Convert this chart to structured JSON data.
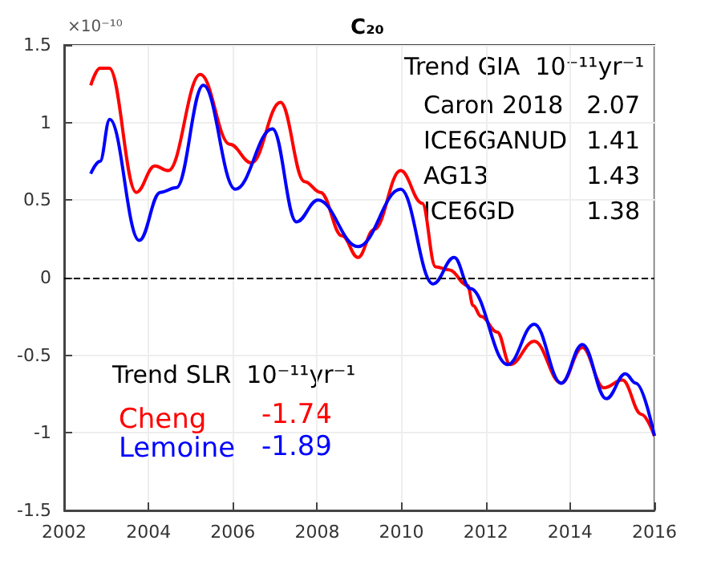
{
  "chart_data": {
    "type": "line",
    "title": "C₂₀",
    "annotations": [
      "×10⁻¹⁰",
      "Trend GIA  10⁻¹¹yr⁻¹",
      "Caron 2018",
      "2.07",
      "ICE6GANUD",
      "1.41",
      "AG13",
      "1.43",
      "ICE6GD",
      "1.38",
      "Trend SLR  10⁻¹¹yr⁻¹",
      "-1.74",
      "-1.89"
    ],
    "series": [
      {
        "name": "Cheng",
        "color": "#ff0000",
        "x": [
          2002.63,
          2002.85,
          2003.07,
          2003.71,
          2004.15,
          2004.47,
          2005.23,
          2005.93,
          2006.44,
          2007.13,
          2007.7,
          2008.08,
          2008.59,
          2008.97,
          2009.35,
          2009.98,
          2010.49,
          2010.81,
          2011.13,
          2011.57,
          2011.7,
          2011.89,
          2012.27,
          2012.58,
          2013.15,
          2013.79,
          2014.29,
          2014.8,
          2015.24,
          2015.69,
          2016.0
        ],
        "values": [
          1.24,
          1.35,
          1.35,
          0.55,
          0.72,
          0.69,
          1.31,
          0.86,
          0.74,
          1.13,
          0.62,
          0.55,
          0.27,
          0.13,
          0.31,
          0.69,
          0.48,
          0.07,
          0.05,
          -0.05,
          -0.18,
          -0.25,
          -0.35,
          -0.56,
          -0.41,
          -0.68,
          -0.45,
          -0.71,
          -0.66,
          -0.88,
          -1.02
        ]
      },
      {
        "name": "Lemoine",
        "color": "#0000ff",
        "x": [
          2002.63,
          2002.85,
          2003.08,
          2003.78,
          2004.28,
          2004.66,
          2005.3,
          2006.06,
          2006.94,
          2007.51,
          2008.02,
          2008.97,
          2009.98,
          2010.75,
          2011.25,
          2011.63,
          2012.52,
          2013.15,
          2013.79,
          2014.29,
          2014.86,
          2015.31,
          2015.56,
          2016.0
        ],
        "values": [
          0.67,
          0.75,
          1.02,
          0.24,
          0.55,
          0.58,
          1.24,
          0.57,
          0.96,
          0.36,
          0.5,
          0.2,
          0.57,
          -0.04,
          0.13,
          -0.07,
          -0.56,
          -0.3,
          -0.68,
          -0.43,
          -0.78,
          -0.62,
          -0.68,
          -1.02
        ]
      }
    ],
    "xlim": [
      2002,
      2016
    ],
    "xticks": [
      2002,
      2004,
      2006,
      2008,
      2010,
      2012,
      2014,
      2016
    ],
    "ylim": [
      -1.5,
      1.5
    ],
    "yticks": [
      -1.5,
      -1,
      -0.5,
      0,
      0.5,
      1,
      1.5
    ],
    "ref_lines": [
      {
        "axis": "y",
        "value": 0,
        "color": "#000000",
        "line_style": "dashed"
      }
    ],
    "grid": true,
    "legend": "bottom left",
    "marker": "none",
    "line_style": "solid"
  }
}
